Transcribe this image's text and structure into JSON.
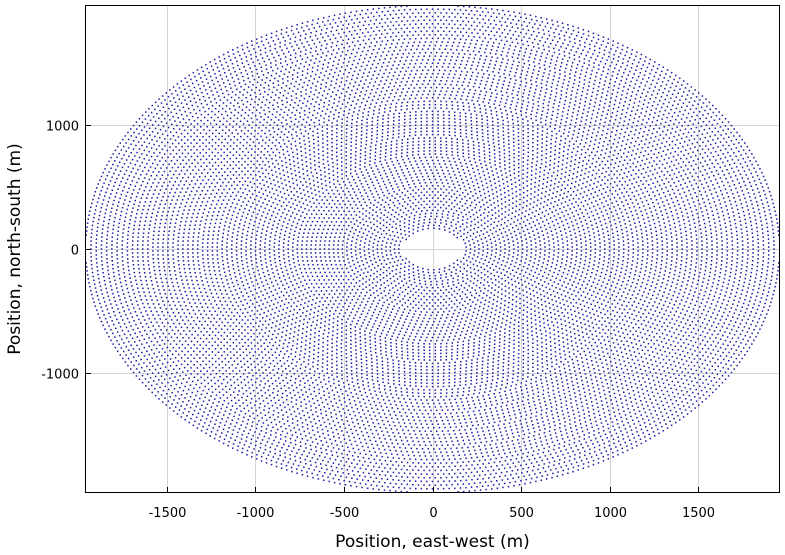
{
  "chart_data": {
    "type": "scatter",
    "title": "",
    "xlabel": "Position, east-west (m)",
    "ylabel": "Position, north-south (m)",
    "xlim": [
      -1960,
      1960
    ],
    "ylim": [
      -1960,
      1960
    ],
    "x_ticks": [
      -1500,
      -1000,
      -500,
      0,
      500,
      1000,
      1500
    ],
    "y_ticks": [
      -1000,
      0,
      1000
    ],
    "x_tick_labels": [
      "-1500",
      "-1000",
      "-500",
      "0",
      "500",
      "1000",
      "1500"
    ],
    "y_tick_labels": [
      "-1000",
      "0",
      "1000"
    ],
    "grid": true,
    "legend": "none",
    "point_color": "#1a1aa8",
    "series": [
      {
        "pattern": "concentric elliptical rings of heliostat positions (radial stagger field)",
        "outer_semi_axis_ew": 1960,
        "outer_semi_axis_ns": 1960,
        "inner_gap_semi_axis_ew": 170,
        "inner_gap_semi_axis_ns": 150,
        "center": [
          0,
          0
        ]
      }
    ]
  }
}
